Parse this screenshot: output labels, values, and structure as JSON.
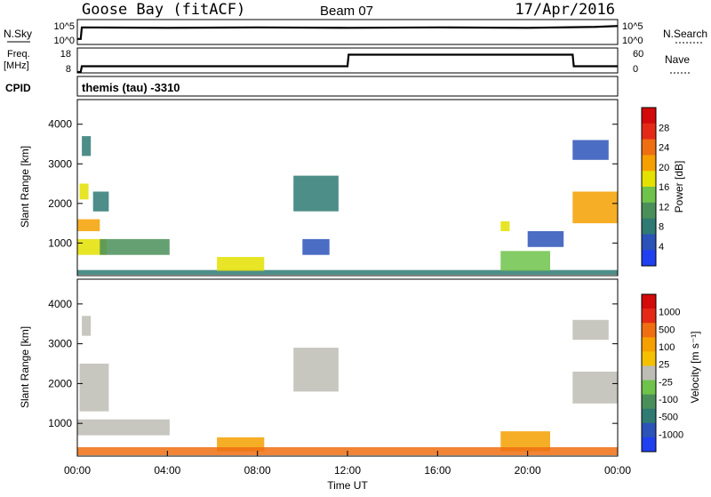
{
  "header": {
    "station": "Goose Bay (fitACF)",
    "beam": "Beam 07",
    "date": "17/Apr/2016"
  },
  "colors": {
    "axis": "#000000",
    "scatter_background": "#ffffff",
    "ground_scatter": "#bdbdb5"
  },
  "chart_data": [
    {
      "type": "line",
      "panel": "noise",
      "left_label": "N.Sky",
      "right_label": "N.Search",
      "left_ticks": [
        "10^5",
        "10^0"
      ],
      "right_ticks": [
        "10^5",
        "10^0"
      ],
      "x": [
        "00:00",
        "24:00"
      ],
      "series": [
        {
          "values": [
            [
              0.0,
              1
            ],
            [
              0.15,
              1
            ],
            [
              0.2,
              3.5
            ],
            [
              4,
              3.4
            ],
            [
              8,
              3.5
            ],
            [
              12,
              3.4
            ],
            [
              16,
              3.5
            ],
            [
              20,
              3.4
            ],
            [
              23,
              3.6
            ],
            [
              24,
              3.8
            ]
          ]
        }
      ],
      "ylim": [
        0,
        5
      ]
    },
    {
      "type": "line",
      "panel": "frequency",
      "left_label": "Freq.",
      "left_unit": "[MHz]",
      "right_label": "Nave",
      "left_ticks": [
        "18",
        "8"
      ],
      "right_ticks": [
        "60",
        "0"
      ],
      "series": [
        {
          "values": [
            [
              0.0,
              8
            ],
            [
              0.15,
              8
            ],
            [
              0.2,
              10.5
            ],
            [
              12,
              10.5
            ],
            [
              12.05,
              15.5
            ],
            [
              22,
              15.5
            ],
            [
              22.05,
              10.5
            ],
            [
              24,
              10.5
            ]
          ]
        }
      ],
      "ylim": [
        8,
        18
      ]
    },
    {
      "type": "table",
      "panel": "cpid",
      "left_label": "CPID",
      "text": "themis (tau) -3310"
    },
    {
      "type": "heatmap",
      "panel": "power",
      "ylabel": "Slant Range [km]",
      "yticks": [
        "1000",
        "2000",
        "3000",
        "4000"
      ],
      "ylim": [
        200,
        4600
      ],
      "xlim": [
        0,
        24
      ],
      "colorbar": {
        "label": "Power [dB]",
        "ticks": [
          "4",
          "8",
          "12",
          "16",
          "20",
          "24",
          "28"
        ],
        "colors": [
          "#1f3ff0",
          "#2b53b8",
          "#2f7a73",
          "#4a8f5a",
          "#6fc34a",
          "#e3e100",
          "#f5a000",
          "#ef6e12",
          "#e42a16",
          "#d40a0a"
        ]
      },
      "regions": [
        {
          "t0": 0.0,
          "t1": 1.3,
          "r0": 700,
          "r1": 1100,
          "level": 5
        },
        {
          "t0": 0.0,
          "t1": 1.0,
          "r0": 1300,
          "r1": 1600,
          "level": 6
        },
        {
          "t0": 0.1,
          "t1": 0.5,
          "r0": 2100,
          "r1": 2500,
          "level": 5
        },
        {
          "t0": 0.2,
          "t1": 0.6,
          "r0": 3200,
          "r1": 3700,
          "level": 2
        },
        {
          "t0": 0.7,
          "t1": 1.4,
          "r0": 1800,
          "r1": 2300,
          "level": 2
        },
        {
          "t0": 1.0,
          "t1": 4.1,
          "r0": 700,
          "r1": 1100,
          "level": 3
        },
        {
          "t0": 0.0,
          "t1": 24.0,
          "r0": 200,
          "r1": 320,
          "level": 2
        },
        {
          "t0": 6.2,
          "t1": 8.3,
          "r0": 300,
          "r1": 650,
          "level": 5
        },
        {
          "t0": 9.6,
          "t1": 11.6,
          "r0": 1800,
          "r1": 2700,
          "level": 2
        },
        {
          "t0": 10.0,
          "t1": 11.2,
          "r0": 700,
          "r1": 1100,
          "level": 1
        },
        {
          "t0": 18.8,
          "t1": 21.0,
          "r0": 300,
          "r1": 800,
          "level": 4
        },
        {
          "t0": 18.8,
          "t1": 19.2,
          "r0": 1300,
          "r1": 1550,
          "level": 5
        },
        {
          "t0": 20.0,
          "t1": 21.6,
          "r0": 900,
          "r1": 1300,
          "level": 1
        },
        {
          "t0": 22.0,
          "t1": 24.0,
          "r0": 1500,
          "r1": 2300,
          "level": 6
        },
        {
          "t0": 22.0,
          "t1": 23.6,
          "r0": 3100,
          "r1": 3600,
          "level": 1
        }
      ]
    },
    {
      "type": "heatmap",
      "panel": "velocity",
      "ylabel": "Slant Range [km]",
      "yticks": [
        "1000",
        "2000",
        "3000",
        "4000"
      ],
      "ylim": [
        200,
        4600
      ],
      "xlim": [
        0,
        24
      ],
      "xticks": [
        "00:00",
        "04:00",
        "08:00",
        "12:00",
        "16:00",
        "20:00",
        "00:00"
      ],
      "xlabel": "Time UT",
      "colorbar": {
        "label": "Velocity [m s⁻¹]",
        "ticks": [
          "1000",
          "500",
          "100",
          "25",
          "-25",
          "-100",
          "-500",
          "-1000"
        ],
        "colors": [
          "#1f3ff0",
          "#2b53b8",
          "#2f7a73",
          "#4a8f5a",
          "#6fc34a",
          "#bdbdb5",
          "#f5c000",
          "#f5a000",
          "#ef6e12",
          "#e42a16",
          "#d40a0a"
        ]
      },
      "regions": [
        {
          "t0": 0.0,
          "t1": 4.1,
          "r0": 700,
          "r1": 1100,
          "level": 5
        },
        {
          "t0": 0.1,
          "t1": 1.4,
          "r0": 1300,
          "r1": 2500,
          "level": 5
        },
        {
          "t0": 0.2,
          "t1": 0.6,
          "r0": 3200,
          "r1": 3700,
          "level": 5
        },
        {
          "t0": 6.2,
          "t1": 8.3,
          "r0": 300,
          "r1": 650,
          "level": 7
        },
        {
          "t0": 9.6,
          "t1": 11.6,
          "r0": 1800,
          "r1": 2900,
          "level": 5
        },
        {
          "t0": 18.8,
          "t1": 21.0,
          "r0": 300,
          "r1": 800,
          "level": 7
        },
        {
          "t0": 22.0,
          "t1": 24.0,
          "r0": 1500,
          "r1": 2300,
          "level": 5
        },
        {
          "t0": 22.0,
          "t1": 23.6,
          "r0": 3100,
          "r1": 3600,
          "level": 5
        },
        {
          "t0": 0.0,
          "t1": 24.0,
          "r0": 200,
          "r1": 400,
          "level": 8
        }
      ]
    }
  ]
}
